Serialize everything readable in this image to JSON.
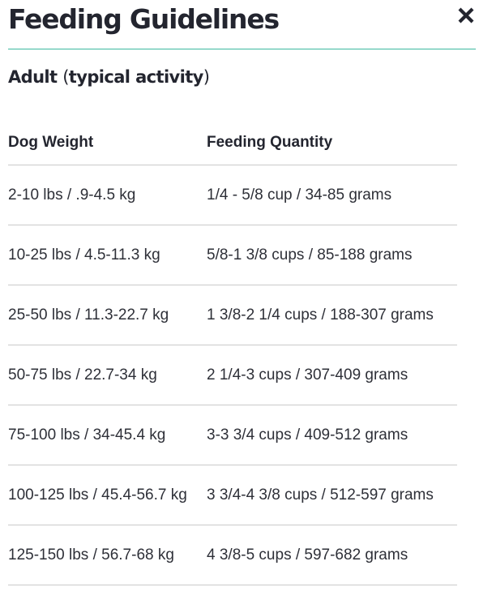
{
  "modal": {
    "title": "Feeding Guidelines",
    "close_icon": "close-icon",
    "accent_color": "#3cb89f"
  },
  "section": {
    "open_paren": "(",
    "label": "Adult",
    "activity": "typical activity",
    "close_paren": ")"
  },
  "table": {
    "headers": [
      "Dog Weight",
      "Feeding Quantity"
    ],
    "rows": [
      [
        "2-10 lbs / .9-4.5 kg",
        "1/4 - 5/8 cup / 34-85 grams"
      ],
      [
        "10-25 lbs / 4.5-11.3 kg",
        "5/8-1 3/8 cups / 85-188 grams"
      ],
      [
        "25-50 lbs / 11.3-22.7 kg",
        "1 3/8-2 1/4 cups / 188-307 grams"
      ],
      [
        "50-75 lbs / 22.7-34 kg",
        "2 1/4-3 cups / 307-409 grams"
      ],
      [
        "75-100 lbs / 34-45.4 kg",
        "3-3 3/4 cups / 409-512 grams"
      ],
      [
        "100-125 lbs / 45.4-56.7 kg",
        "3 3/4-4 3/8 cups / 512-597 grams"
      ],
      [
        "125-150 lbs / 56.7-68 kg",
        "4 3/8-5 cups / 597-682 grams"
      ]
    ]
  }
}
